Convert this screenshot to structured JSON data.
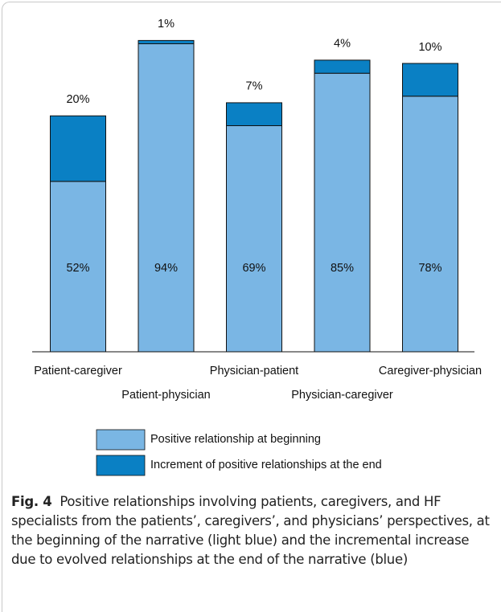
{
  "chart_data": {
    "type": "stacked_bar",
    "categories": [
      "Patient-caregiver",
      "Patient-physician",
      "Physician-patient",
      "Physician-caregiver",
      "Caregiver-physician"
    ],
    "series": [
      {
        "name": "Positive relationship at beginning",
        "color": "#7ab6e4",
        "values": [
          52,
          94,
          69,
          85,
          78
        ],
        "value_labels": [
          "52%",
          "94%",
          "69%",
          "85%",
          "78%"
        ]
      },
      {
        "name": "Increment of positive relationships at the end",
        "color": "#0a80c4",
        "values": [
          20,
          1,
          7,
          4,
          10
        ],
        "value_labels": [
          "20%",
          "1%",
          "7%",
          "4%",
          "10%"
        ]
      }
    ],
    "ylim": [
      0,
      100
    ]
  },
  "caption": {
    "label": "Fig. 4",
    "text": "Positive relationships involving patients, caregivers, and HF specialists from the patients’, caregivers’, and physicians’ perspectives, at the beginning of the narrative (light blue) and the incremental increase due to evolved relationships at the end of the narrative (blue)"
  }
}
